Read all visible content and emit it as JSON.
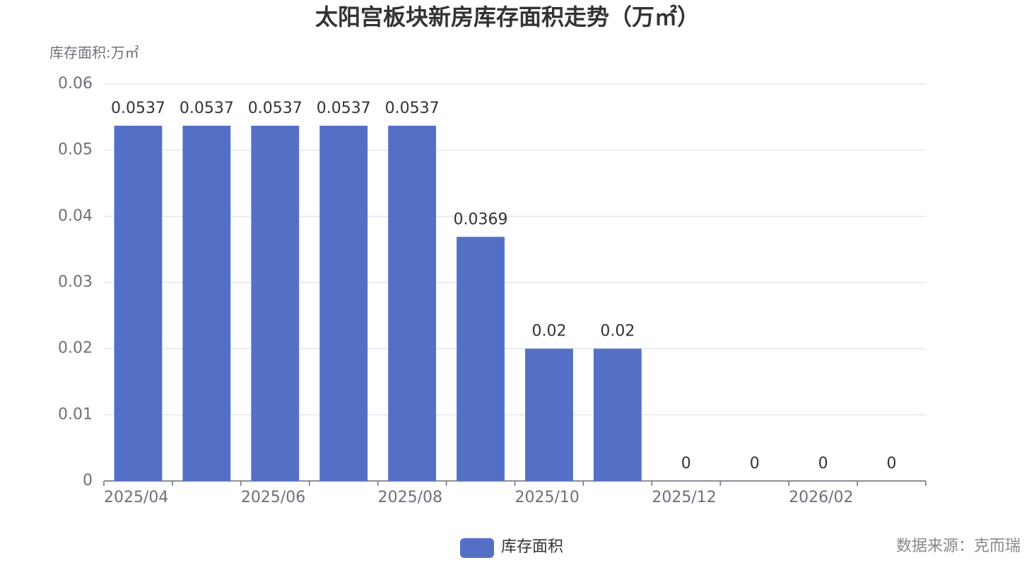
{
  "chart_data": {
    "type": "bar",
    "title": "太阳宫板块新房库存面积走势（万㎡）",
    "y_label": "库存面积:万㎡",
    "categories": [
      "2025/04",
      null,
      "2025/06",
      null,
      "2025/08",
      null,
      "2025/10",
      null,
      "2025/12",
      null,
      "2026/02",
      null
    ],
    "series": [
      {
        "name": "库存面积",
        "color": "#5470c6",
        "values": [
          0.0537,
          0.0537,
          0.0537,
          0.0537,
          0.0537,
          0.0369,
          0.02,
          0.02,
          0,
          0,
          0,
          0
        ]
      }
    ],
    "ylim": [
      0,
      0.06
    ],
    "yticks": [
      0,
      0.01,
      0.02,
      0.03,
      0.04,
      0.05,
      0.06
    ],
    "grid": true,
    "source": "数据来源：克而瑞"
  }
}
